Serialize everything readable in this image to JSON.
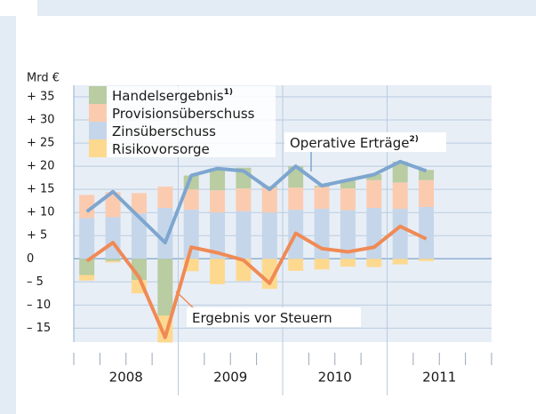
{
  "chart_data": {
    "type": "bar",
    "y_label": "Mrd €",
    "categories": [
      null,
      null,
      null,
      null,
      null,
      null,
      null,
      null,
      null,
      null,
      null,
      null,
      null,
      null,
      null,
      null
    ],
    "years": [
      "2008",
      "2009",
      "2010",
      "2011"
    ],
    "ylim": [
      -18,
      37.5
    ],
    "yticks": [
      {
        "value": 35,
        "label": "+ 35"
      },
      {
        "value": 30,
        "label": "+ 30"
      },
      {
        "value": 25,
        "label": "+ 25"
      },
      {
        "value": 20,
        "label": "+ 20"
      },
      {
        "value": 15,
        "label": "+ 15"
      },
      {
        "value": 10,
        "label": "+ 10"
      },
      {
        "value": 5,
        "label": "+  5"
      },
      0,
      {
        "value": -5,
        "label": "–  5"
      },
      {
        "value": -10,
        "label": "– 10"
      },
      {
        "value": -15,
        "label": "– 15"
      }
    ],
    "grid": true,
    "series": [
      {
        "name": "Zinsüberschuss",
        "color": "#c5d6ea",
        "values": [
          8.8,
          9,
          9.8,
          11,
          10.6,
          10,
          10.3,
          10,
          10.6,
          10.8,
          10.5,
          11,
          10.8,
          11.2,
          null,
          null
        ]
      },
      {
        "name": "Provisionsüberschuss",
        "color": "#fbcbb0",
        "values": [
          5,
          5.4,
          4.4,
          4.6,
          4.4,
          4.8,
          4.9,
          5.4,
          4.8,
          4.7,
          4.7,
          6,
          5.7,
          5.8,
          null,
          null
        ]
      },
      {
        "name": "Handelsergebnis",
        "note": "1)",
        "color": "#b9cca2",
        "values": [
          -3.5,
          -0.5,
          -4.6,
          -12.3,
          3,
          4.7,
          4.5,
          0.3,
          4.6,
          0.3,
          1.8,
          1.3,
          4.5,
          2.2,
          null,
          null
        ]
      },
      {
        "name": "Risikovorsorge",
        "color": "#fdd98f",
        "values": [
          -1.2,
          -0.3,
          -2.9,
          -5.8,
          -2.7,
          -5.5,
          -4.8,
          -6.5,
          -2.6,
          -2.3,
          -1.7,
          -1.8,
          -1.2,
          -0.5,
          null,
          null
        ]
      }
    ],
    "lines": [
      {
        "name": "Operative Erträge",
        "note": "2)",
        "color": "#7ea6cf",
        "values": [
          10.2,
          14.5,
          9,
          3.5,
          18,
          19.5,
          19,
          15,
          20,
          15.8,
          17,
          18.2,
          21,
          19,
          null,
          null
        ]
      },
      {
        "name": "Ergebnis vor Steuern",
        "color": "#f08a55",
        "values": [
          -0.5,
          3.5,
          -4,
          -17,
          2.5,
          1.3,
          -0.3,
          -5.3,
          5.5,
          2.2,
          1.5,
          2.5,
          7,
          4.3,
          null,
          null
        ]
      }
    ]
  }
}
